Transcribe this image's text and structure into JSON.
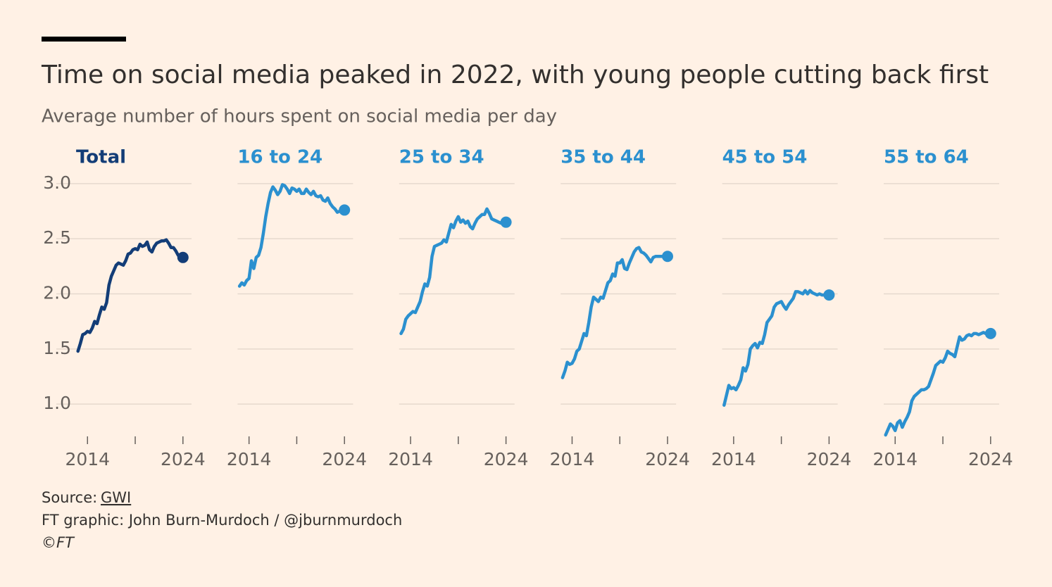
{
  "title": "Time on social media peaked in 2022, with young people cutting back first",
  "subtitle": "Average number of hours spent on social media per day",
  "source_label": "Source:",
  "source_name": "GWI",
  "credit": "FT graphic: John Burn-Murdoch / @jburnmurdoch",
  "copyright": "©FT",
  "chart_data": [
    {
      "type": "line",
      "title": "Total",
      "color": "#133d77",
      "grid": true,
      "end_marker": true,
      "show_yticklabels": true,
      "xlim": [
        2012.8,
        2024.9
      ],
      "xticks": [
        2014,
        {
          "value": 2019,
          "label": null
        },
        2024
      ],
      "ylim": [
        0.65,
        3.05
      ],
      "yticks": [
        {
          "value": 1,
          "label": "1.0"
        },
        1.5,
        {
          "value": 2,
          "label": "2.0"
        },
        2.5,
        {
          "value": 3,
          "label": "3.0"
        }
      ],
      "x": [
        2013,
        2013.25,
        2013.5,
        2013.75,
        2014,
        2014.25,
        2014.5,
        2014.75,
        2015,
        2015.25,
        2015.5,
        2015.75,
        2016,
        2016.25,
        2016.5,
        2016.75,
        2017,
        2017.25,
        2017.5,
        2017.75,
        2018,
        2018.25,
        2018.5,
        2018.75,
        2019,
        2019.25,
        2019.5,
        2019.75,
        2020,
        2020.25,
        2020.5,
        2020.75,
        2021,
        2021.25,
        2021.5,
        2021.75,
        2022,
        2022.25,
        2022.5,
        2022.75,
        2023,
        2023.25,
        2023.5,
        2023.75,
        2024
      ],
      "values": [
        1.48,
        1.55,
        1.63,
        1.64,
        1.66,
        1.65,
        1.69,
        1.75,
        1.73,
        1.81,
        1.88,
        1.86,
        1.92,
        2.08,
        2.16,
        2.21,
        2.26,
        2.28,
        2.27,
        2.26,
        2.3,
        2.36,
        2.37,
        2.4,
        2.41,
        2.4,
        2.45,
        2.43,
        2.44,
        2.47,
        2.4,
        2.38,
        2.43,
        2.46,
        2.47,
        2.48,
        2.48,
        2.49,
        2.46,
        2.42,
        2.42,
        2.39,
        2.35,
        2.34,
        2.33
      ]
    },
    {
      "type": "line",
      "title": "16 to 24",
      "color": "#2b90cf",
      "grid": true,
      "end_marker": true,
      "show_yticklabels": false,
      "xlim": [
        2012.8,
        2024.9
      ],
      "xticks": [
        2014,
        {
          "value": 2019,
          "label": null
        },
        2024
      ],
      "ylim": [
        0.65,
        3.05
      ],
      "yticks": [
        1,
        1.5,
        2,
        2.5,
        3
      ],
      "x": [
        2013,
        2013.25,
        2013.5,
        2013.75,
        2014,
        2014.25,
        2014.5,
        2014.75,
        2015,
        2015.25,
        2015.5,
        2015.75,
        2016,
        2016.25,
        2016.5,
        2016.75,
        2017,
        2017.25,
        2017.5,
        2017.75,
        2018,
        2018.25,
        2018.5,
        2018.75,
        2019,
        2019.25,
        2019.5,
        2019.75,
        2020,
        2020.25,
        2020.5,
        2020.75,
        2021,
        2021.25,
        2021.5,
        2021.75,
        2022,
        2022.25,
        2022.5,
        2022.75,
        2023,
        2023.25,
        2023.5,
        2023.75,
        2024
      ],
      "values": [
        2.07,
        2.1,
        2.08,
        2.12,
        2.14,
        2.3,
        2.23,
        2.33,
        2.35,
        2.42,
        2.55,
        2.7,
        2.82,
        2.92,
        2.97,
        2.94,
        2.9,
        2.93,
        2.99,
        2.98,
        2.95,
        2.91,
        2.96,
        2.95,
        2.93,
        2.95,
        2.91,
        2.91,
        2.95,
        2.92,
        2.9,
        2.93,
        2.89,
        2.88,
        2.89,
        2.85,
        2.84,
        2.87,
        2.82,
        2.79,
        2.77,
        2.74,
        2.75,
        2.76,
        2.76
      ]
    },
    {
      "type": "line",
      "title": "25 to 34",
      "color": "#2b90cf",
      "grid": true,
      "end_marker": true,
      "show_yticklabels": false,
      "xlim": [
        2012.8,
        2024.9
      ],
      "xticks": [
        2014,
        {
          "value": 2019,
          "label": null
        },
        2024
      ],
      "ylim": [
        0.65,
        3.05
      ],
      "yticks": [
        1,
        1.5,
        2,
        2.5,
        3
      ],
      "x": [
        2013,
        2013.25,
        2013.5,
        2013.75,
        2014,
        2014.25,
        2014.5,
        2014.75,
        2015,
        2015.25,
        2015.5,
        2015.75,
        2016,
        2016.25,
        2016.5,
        2016.75,
        2017,
        2017.25,
        2017.5,
        2017.75,
        2018,
        2018.25,
        2018.5,
        2018.75,
        2019,
        2019.25,
        2019.5,
        2019.75,
        2020,
        2020.25,
        2020.5,
        2020.75,
        2021,
        2021.25,
        2021.5,
        2021.75,
        2022,
        2022.25,
        2022.5,
        2022.75,
        2023,
        2023.25,
        2023.5,
        2023.75,
        2024
      ],
      "values": [
        1.64,
        1.68,
        1.77,
        1.8,
        1.82,
        1.84,
        1.83,
        1.88,
        1.93,
        2.02,
        2.09,
        2.07,
        2.15,
        2.34,
        2.43,
        2.44,
        2.45,
        2.46,
        2.49,
        2.47,
        2.55,
        2.63,
        2.6,
        2.66,
        2.7,
        2.65,
        2.67,
        2.64,
        2.66,
        2.61,
        2.59,
        2.64,
        2.68,
        2.7,
        2.72,
        2.72,
        2.77,
        2.73,
        2.68,
        2.67,
        2.66,
        2.65,
        2.64,
        2.65,
        2.65
      ]
    },
    {
      "type": "line",
      "title": "35 to 44",
      "color": "#2b90cf",
      "grid": true,
      "end_marker": true,
      "show_yticklabels": false,
      "xlim": [
        2012.8,
        2024.9
      ],
      "xticks": [
        2014,
        {
          "value": 2019,
          "label": null
        },
        2024
      ],
      "ylim": [
        0.65,
        3.05
      ],
      "yticks": [
        1,
        1.5,
        2,
        2.5,
        3
      ],
      "x": [
        2013,
        2013.25,
        2013.5,
        2013.75,
        2014,
        2014.25,
        2014.5,
        2014.75,
        2015,
        2015.25,
        2015.5,
        2015.75,
        2016,
        2016.25,
        2016.5,
        2016.75,
        2017,
        2017.25,
        2017.5,
        2017.75,
        2018,
        2018.25,
        2018.5,
        2018.75,
        2019,
        2019.25,
        2019.5,
        2019.75,
        2020,
        2020.25,
        2020.5,
        2020.75,
        2021,
        2021.25,
        2021.5,
        2021.75,
        2022,
        2022.25,
        2022.5,
        2022.75,
        2023,
        2023.25,
        2023.5,
        2023.75,
        2024
      ],
      "values": [
        1.24,
        1.3,
        1.38,
        1.36,
        1.37,
        1.41,
        1.48,
        1.5,
        1.57,
        1.64,
        1.62,
        1.74,
        1.88,
        1.97,
        1.95,
        1.93,
        1.97,
        1.96,
        2.03,
        2.1,
        2.12,
        2.18,
        2.16,
        2.28,
        2.28,
        2.31,
        2.23,
        2.22,
        2.28,
        2.33,
        2.38,
        2.41,
        2.42,
        2.38,
        2.37,
        2.35,
        2.32,
        2.29,
        2.33,
        2.34,
        2.34,
        2.34,
        2.34,
        2.34,
        2.34
      ]
    },
    {
      "type": "line",
      "title": "45 to 54",
      "color": "#2b90cf",
      "grid": true,
      "end_marker": true,
      "show_yticklabels": false,
      "xlim": [
        2012.8,
        2024.9
      ],
      "xticks": [
        2014,
        {
          "value": 2019,
          "label": null
        },
        2024
      ],
      "ylim": [
        0.65,
        3.05
      ],
      "yticks": [
        1,
        1.5,
        2,
        2.5,
        3
      ],
      "x": [
        2013,
        2013.25,
        2013.5,
        2013.75,
        2014,
        2014.25,
        2014.5,
        2014.75,
        2015,
        2015.25,
        2015.5,
        2015.75,
        2016,
        2016.25,
        2016.5,
        2016.75,
        2017,
        2017.25,
        2017.5,
        2017.75,
        2018,
        2018.25,
        2018.5,
        2018.75,
        2019,
        2019.25,
        2019.5,
        2019.75,
        2020,
        2020.25,
        2020.5,
        2020.75,
        2021,
        2021.25,
        2021.5,
        2021.75,
        2022,
        2022.25,
        2022.5,
        2022.75,
        2023,
        2023.25,
        2023.5,
        2023.75,
        2024
      ],
      "values": [
        0.99,
        1.08,
        1.17,
        1.14,
        1.15,
        1.13,
        1.17,
        1.22,
        1.33,
        1.3,
        1.36,
        1.5,
        1.53,
        1.55,
        1.51,
        1.56,
        1.55,
        1.63,
        1.74,
        1.77,
        1.8,
        1.88,
        1.91,
        1.92,
        1.93,
        1.89,
        1.86,
        1.9,
        1.93,
        1.96,
        2.02,
        2.02,
        2.01,
        2.0,
        2.03,
        2.0,
        2.03,
        2.01,
        2.0,
        1.99,
        2.0,
        1.99,
        1.99,
        1.99,
        1.99
      ]
    },
    {
      "type": "line",
      "title": "55 to 64",
      "color": "#2b90cf",
      "grid": true,
      "end_marker": true,
      "show_yticklabels": false,
      "xlim": [
        2012.8,
        2024.9
      ],
      "xticks": [
        2014,
        {
          "value": 2019,
          "label": null
        },
        2024
      ],
      "ylim": [
        0.65,
        3.05
      ],
      "yticks": [
        1,
        1.5,
        2,
        2.5,
        3
      ],
      "x": [
        2013,
        2013.25,
        2013.5,
        2013.75,
        2014,
        2014.25,
        2014.5,
        2014.75,
        2015,
        2015.25,
        2015.5,
        2015.75,
        2016,
        2016.25,
        2016.5,
        2016.75,
        2017,
        2017.25,
        2017.5,
        2017.75,
        2018,
        2018.25,
        2018.5,
        2018.75,
        2019,
        2019.25,
        2019.5,
        2019.75,
        2020,
        2020.25,
        2020.5,
        2020.75,
        2021,
        2021.25,
        2021.5,
        2021.75,
        2022,
        2022.25,
        2022.5,
        2022.75,
        2023,
        2023.25,
        2023.5,
        2023.75,
        2024
      ],
      "values": [
        0.72,
        0.77,
        0.82,
        0.8,
        0.76,
        0.83,
        0.85,
        0.79,
        0.84,
        0.88,
        0.93,
        1.03,
        1.07,
        1.09,
        1.11,
        1.13,
        1.13,
        1.14,
        1.16,
        1.22,
        1.28,
        1.35,
        1.37,
        1.39,
        1.38,
        1.42,
        1.48,
        1.46,
        1.45,
        1.43,
        1.52,
        1.61,
        1.58,
        1.59,
        1.62,
        1.63,
        1.62,
        1.64,
        1.64,
        1.63,
        1.64,
        1.65,
        1.64,
        1.64,
        1.64
      ]
    }
  ]
}
